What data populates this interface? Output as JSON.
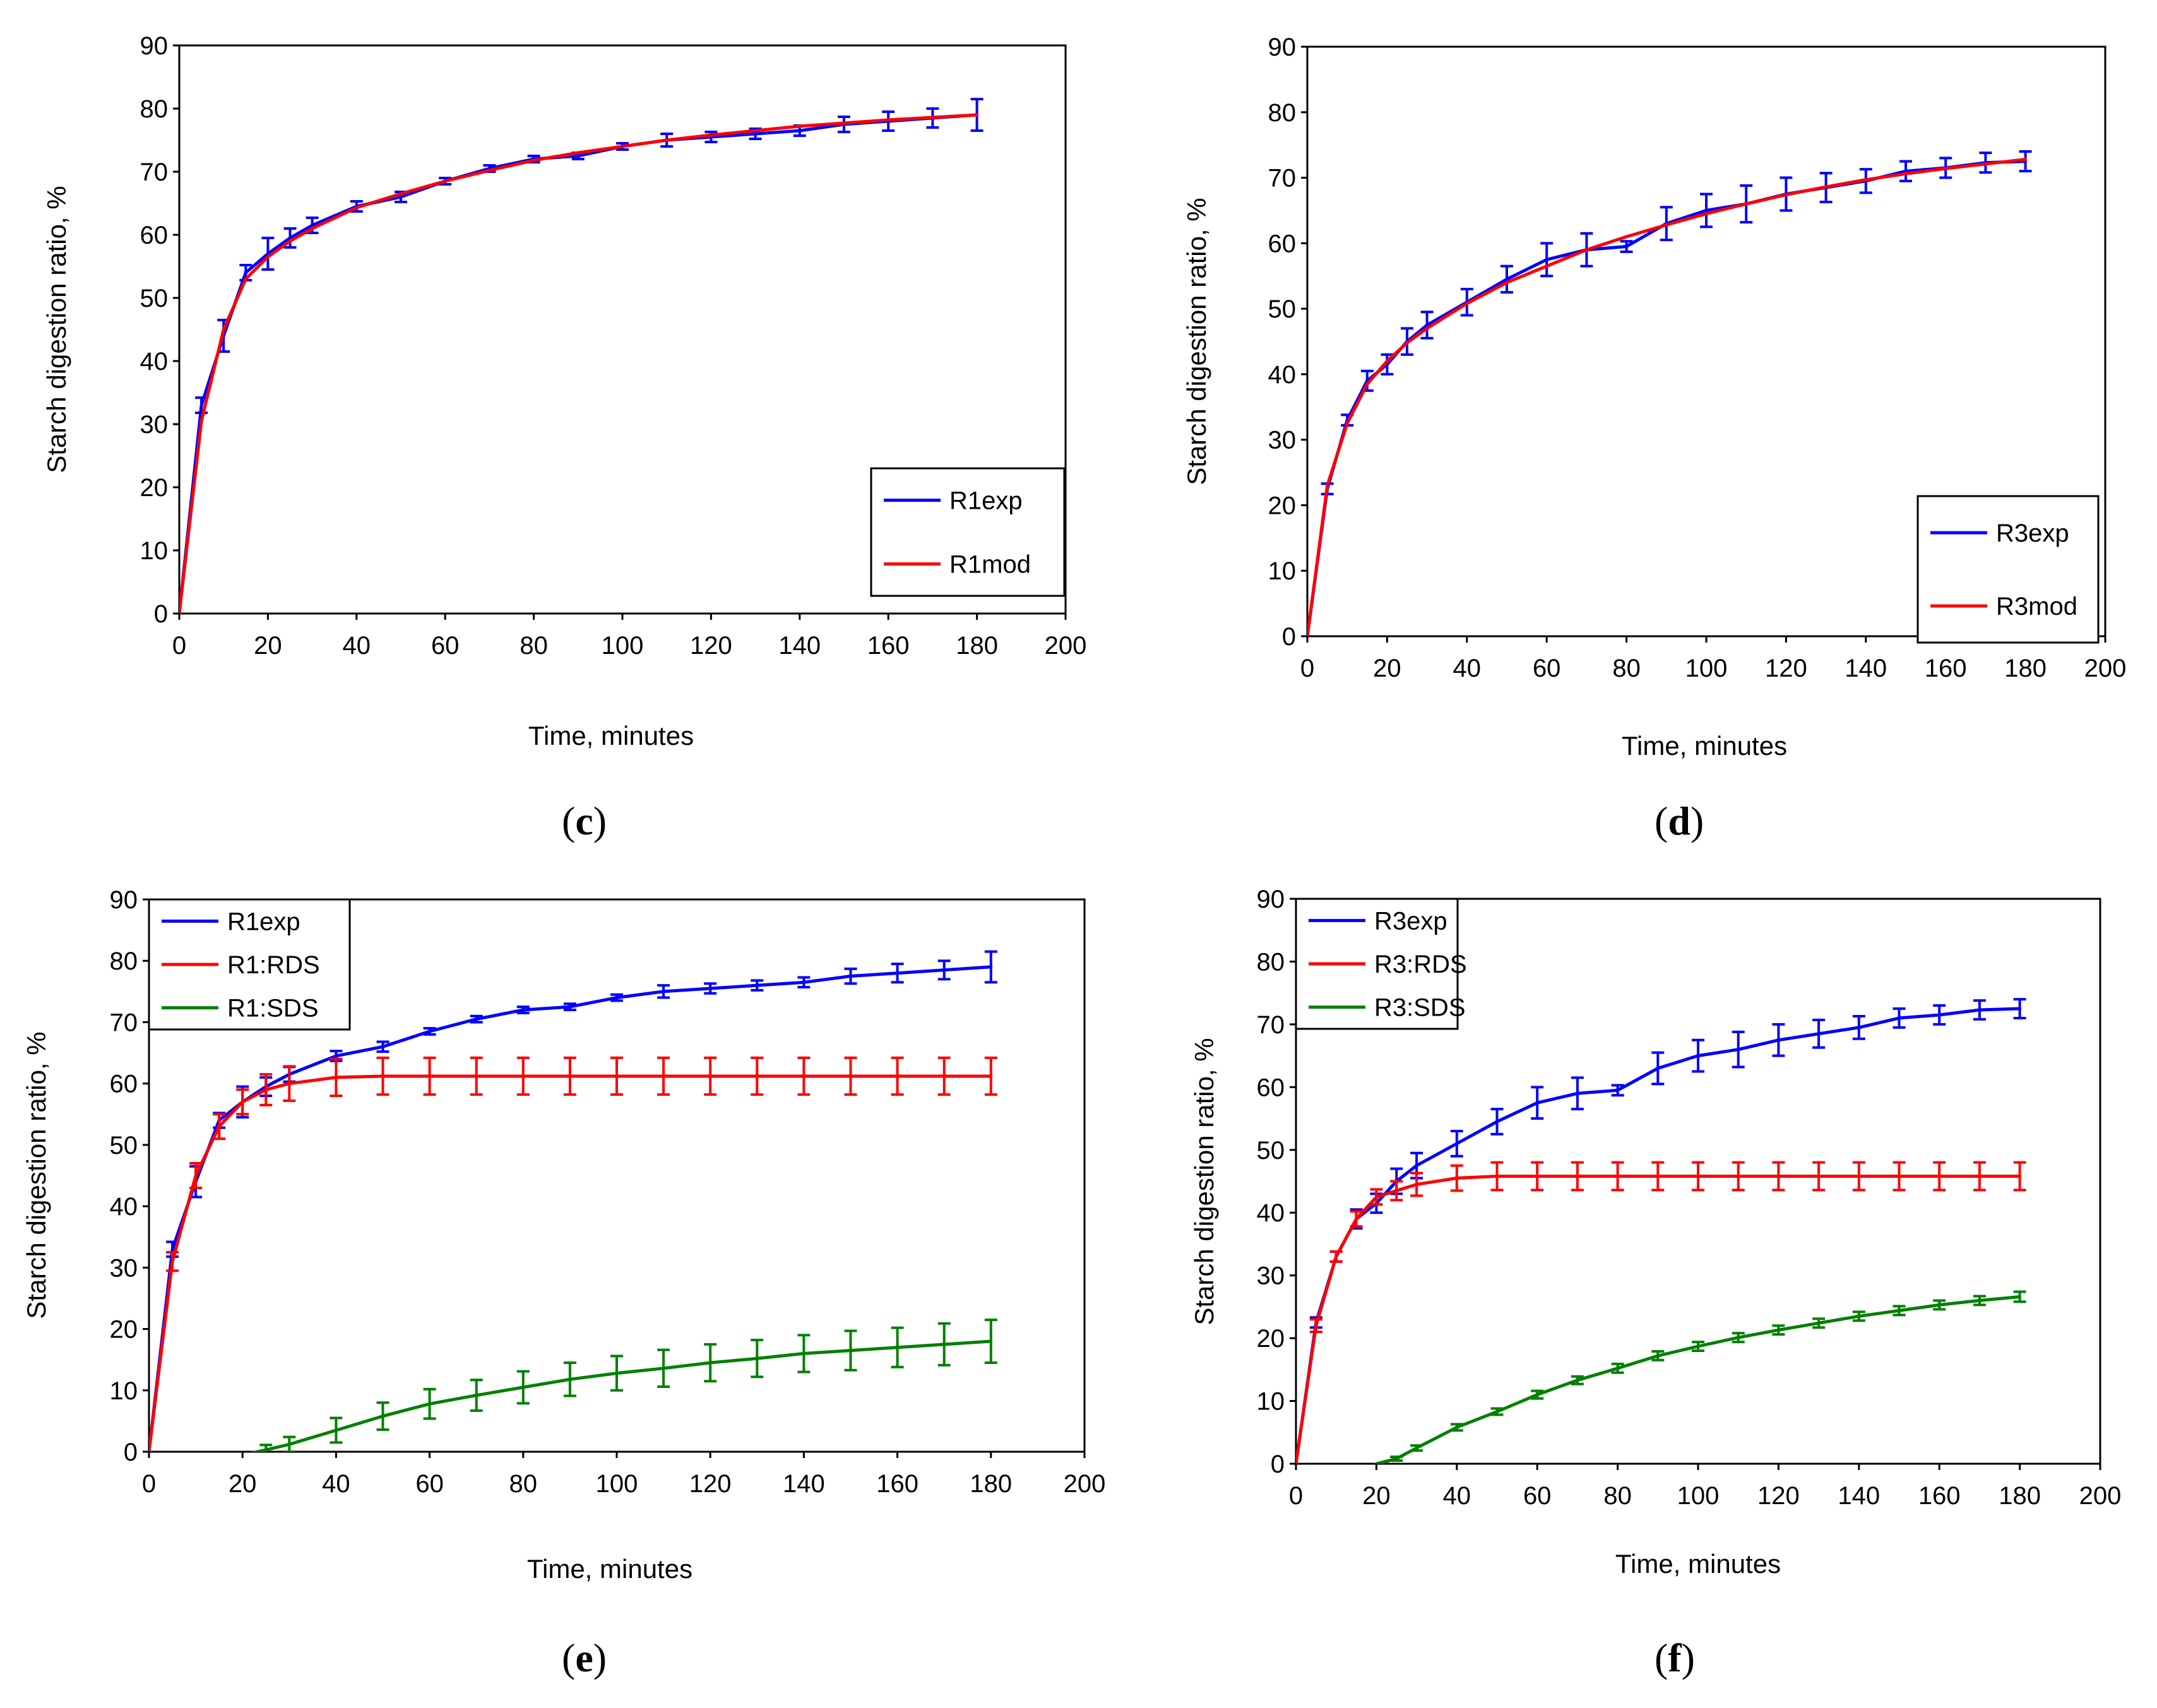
{
  "chart_data": [
    {
      "id": "c",
      "type": "line",
      "caption_letter": "c",
      "xlabel": "Time, minutes",
      "ylabel": "Starch digestion ratio, %",
      "xlim": [
        0,
        200
      ],
      "ylim": [
        0,
        90
      ],
      "xticks": [
        0,
        20,
        40,
        60,
        80,
        100,
        120,
        140,
        160,
        180,
        200
      ],
      "yticks": [
        0,
        10,
        20,
        30,
        40,
        50,
        60,
        70,
        80,
        90
      ],
      "legend_position": "bottom-right",
      "series": [
        {
          "name": "R1exp",
          "color": "#0000ff",
          "x": [
            0,
            5,
            10,
            15,
            20,
            25,
            30,
            40,
            50,
            60,
            70,
            80,
            90,
            100,
            110,
            120,
            130,
            140,
            150,
            160,
            170,
            180
          ],
          "values": [
            0,
            33,
            44,
            54,
            57,
            59.5,
            61.5,
            64.5,
            66,
            68.5,
            70.5,
            72,
            72.5,
            74,
            75,
            75.5,
            76,
            76.5,
            77.5,
            78,
            78.5,
            79
          ],
          "errors": [
            0,
            1.2,
            2.5,
            1.2,
            2.5,
            1.5,
            1.2,
            0.8,
            0.8,
            0.5,
            0.5,
            0.5,
            0.5,
            0.5,
            1.0,
            0.8,
            0.8,
            0.8,
            1.2,
            1.5,
            1.5,
            2.5
          ]
        },
        {
          "name": "R1mod",
          "color": "#ff0000",
          "x": [
            0,
            5,
            10,
            15,
            20,
            25,
            30,
            40,
            50,
            60,
            70,
            80,
            90,
            100,
            110,
            120,
            130,
            140,
            150,
            160,
            170,
            180
          ],
          "values": [
            0,
            30.5,
            45,
            53,
            56.5,
            59,
            61,
            64.3,
            66.5,
            68.5,
            70.2,
            71.8,
            73,
            74,
            75,
            75.8,
            76.5,
            77.2,
            77.7,
            78.2,
            78.6,
            79
          ]
        }
      ]
    },
    {
      "id": "d",
      "type": "line",
      "caption_letter": "d",
      "xlabel": "Time, minutes",
      "ylabel": "Starch digestion ratio, %",
      "xlim": [
        0,
        200
      ],
      "ylim": [
        0,
        90
      ],
      "xticks": [
        0,
        20,
        40,
        60,
        80,
        100,
        120,
        140,
        160,
        180,
        200
      ],
      "yticks": [
        0,
        10,
        20,
        30,
        40,
        50,
        60,
        70,
        80,
        90
      ],
      "legend_position": "bottom-right",
      "series": [
        {
          "name": "R3exp",
          "color": "#0000ff",
          "x": [
            0,
            5,
            10,
            15,
            20,
            25,
            30,
            40,
            50,
            60,
            70,
            80,
            90,
            100,
            110,
            120,
            130,
            140,
            150,
            160,
            170,
            180
          ],
          "values": [
            0,
            22.5,
            33,
            39,
            41.5,
            45,
            47.5,
            51,
            54.5,
            57.5,
            59,
            59.5,
            63,
            65,
            66,
            67.5,
            68.5,
            69.5,
            71,
            71.5,
            72.3,
            72.5
          ],
          "errors": [
            0,
            0.8,
            0.8,
            1.5,
            1.5,
            2.0,
            2.0,
            2.0,
            2.0,
            2.5,
            2.5,
            0.8,
            2.5,
            2.5,
            2.8,
            2.5,
            2.2,
            1.8,
            1.5,
            1.5,
            1.5,
            1.5
          ]
        },
        {
          "name": "R3mod",
          "color": "#ff0000",
          "x": [
            0,
            5,
            10,
            15,
            20,
            25,
            30,
            40,
            50,
            60,
            70,
            80,
            90,
            100,
            110,
            120,
            130,
            140,
            150,
            160,
            170,
            180
          ],
          "values": [
            0,
            23,
            32.5,
            38.5,
            42,
            44.8,
            47,
            50.8,
            54,
            56.5,
            59,
            61,
            62.8,
            64.5,
            66,
            67.4,
            68.6,
            69.7,
            70.6,
            71.4,
            72.1,
            72.8
          ]
        }
      ]
    },
    {
      "id": "e",
      "type": "line",
      "caption_letter": "e",
      "xlabel": "Time, minutes",
      "ylabel": "Starch digestion ratio, %",
      "xlim": [
        0,
        200
      ],
      "ylim": [
        0,
        90
      ],
      "xticks": [
        0,
        20,
        40,
        60,
        80,
        100,
        120,
        140,
        160,
        180,
        200
      ],
      "yticks": [
        0,
        10,
        20,
        30,
        40,
        50,
        60,
        70,
        80,
        90
      ],
      "legend_position": "top-left",
      "series": [
        {
          "name": "R1exp",
          "color": "#0000ff",
          "x": [
            0,
            5,
            10,
            15,
            20,
            25,
            30,
            40,
            50,
            60,
            70,
            80,
            90,
            100,
            110,
            120,
            130,
            140,
            150,
            160,
            170,
            180
          ],
          "values": [
            0,
            33,
            44,
            54,
            57,
            59.5,
            61.5,
            64.5,
            66,
            68.5,
            70.5,
            72,
            72.5,
            74,
            75,
            75.5,
            76,
            76.5,
            77.5,
            78,
            78.5,
            79
          ],
          "errors": [
            0,
            1.2,
            2.5,
            1.2,
            2.5,
            1.5,
            1.2,
            0.8,
            0.8,
            0.5,
            0.5,
            0.5,
            0.5,
            0.5,
            1.0,
            0.8,
            0.8,
            0.8,
            1.2,
            1.5,
            1.5,
            2.5
          ]
        },
        {
          "name": "R1:RDS",
          "color": "#ff0000",
          "x": [
            0,
            5,
            10,
            15,
            20,
            25,
            30,
            40,
            50,
            60,
            70,
            80,
            90,
            100,
            110,
            120,
            130,
            140,
            150,
            160,
            170,
            180
          ],
          "values": [
            0,
            31,
            45,
            53,
            57,
            59,
            60,
            61,
            61.2,
            61.2,
            61.2,
            61.2,
            61.2,
            61.2,
            61.2,
            61.2,
            61.2,
            61.2,
            61.2,
            61.2,
            61.2,
            61.2
          ],
          "errors": [
            0,
            1.5,
            2.0,
            2.0,
            2.0,
            2.5,
            2.8,
            3.0,
            3.0,
            3.0,
            3.0,
            3.0,
            3.0,
            3.0,
            3.0,
            3.0,
            3.0,
            3.0,
            3.0,
            3.0,
            3.0,
            3.0
          ]
        },
        {
          "name": "R1:SDS",
          "color": "#008000",
          "x": [
            20,
            25,
            30,
            40,
            50,
            60,
            70,
            80,
            90,
            100,
            110,
            120,
            130,
            140,
            150,
            160,
            170,
            180
          ],
          "values": [
            -0.5,
            0.3,
            1.2,
            3.5,
            5.8,
            7.8,
            9.2,
            10.5,
            11.8,
            12.8,
            13.6,
            14.5,
            15.2,
            16,
            16.5,
            17,
            17.5,
            18
          ],
          "errors": [
            0,
            0.8,
            1.2,
            2.0,
            2.2,
            2.4,
            2.5,
            2.6,
            2.7,
            2.8,
            3.0,
            3.0,
            3.0,
            3.0,
            3.2,
            3.2,
            3.4,
            3.5
          ]
        }
      ]
    },
    {
      "id": "f",
      "type": "line",
      "caption_letter": "f",
      "xlabel": "Time, minutes",
      "ylabel": "Starch digestion ratio, %",
      "xlim": [
        0,
        200
      ],
      "ylim": [
        0,
        90
      ],
      "xticks": [
        0,
        20,
        40,
        60,
        80,
        100,
        120,
        140,
        160,
        180,
        200
      ],
      "yticks": [
        0,
        10,
        20,
        30,
        40,
        50,
        60,
        70,
        80,
        90
      ],
      "legend_position": "top-left",
      "series": [
        {
          "name": "R3exp",
          "color": "#0000ff",
          "x": [
            0,
            5,
            10,
            15,
            20,
            25,
            30,
            40,
            50,
            60,
            70,
            80,
            90,
            100,
            110,
            120,
            130,
            140,
            150,
            160,
            170,
            180
          ],
          "values": [
            0,
            22.5,
            33,
            39,
            41.5,
            45,
            47.5,
            51,
            54.5,
            57.5,
            59,
            59.5,
            63,
            65,
            66,
            67.5,
            68.5,
            69.5,
            71,
            71.5,
            72.3,
            72.5
          ],
          "errors": [
            0,
            0.8,
            0.8,
            1.5,
            1.5,
            2.0,
            2.0,
            2.0,
            2.0,
            2.5,
            2.5,
            0.8,
            2.5,
            2.5,
            2.8,
            2.5,
            2.2,
            1.8,
            1.5,
            1.5,
            1.5,
            1.5
          ]
        },
        {
          "name": "R3:RDS",
          "color": "#ff0000",
          "x": [
            0,
            5,
            10,
            15,
            20,
            25,
            30,
            40,
            50,
            60,
            70,
            80,
            90,
            100,
            110,
            120,
            130,
            140,
            150,
            160,
            170,
            180
          ],
          "values": [
            0,
            22,
            33,
            39,
            42.5,
            43.5,
            44.5,
            45.5,
            45.8,
            45.8,
            45.8,
            45.8,
            45.8,
            45.8,
            45.8,
            45.8,
            45.8,
            45.8,
            45.8,
            45.8,
            45.8,
            45.8
          ],
          "errors": [
            0,
            1.0,
            0.8,
            1.2,
            1.2,
            1.5,
            1.8,
            2.0,
            2.2,
            2.2,
            2.2,
            2.2,
            2.2,
            2.2,
            2.2,
            2.2,
            2.2,
            2.2,
            2.2,
            2.2,
            2.2,
            2.2
          ]
        },
        {
          "name": "R3:SDS",
          "color": "#008000",
          "x": [
            20,
            25,
            30,
            40,
            50,
            60,
            70,
            80,
            90,
            100,
            110,
            120,
            130,
            140,
            150,
            160,
            170,
            180
          ],
          "values": [
            0,
            0.8,
            2.5,
            5.8,
            8.3,
            11,
            13.3,
            15.2,
            17.2,
            18.7,
            20.1,
            21.3,
            22.4,
            23.5,
            24.4,
            25.3,
            26,
            26.6
          ],
          "errors": [
            0,
            0.3,
            0.4,
            0.5,
            0.5,
            0.6,
            0.6,
            0.7,
            0.7,
            0.7,
            0.7,
            0.7,
            0.7,
            0.7,
            0.7,
            0.7,
            0.7,
            0.8
          ]
        }
      ]
    }
  ]
}
